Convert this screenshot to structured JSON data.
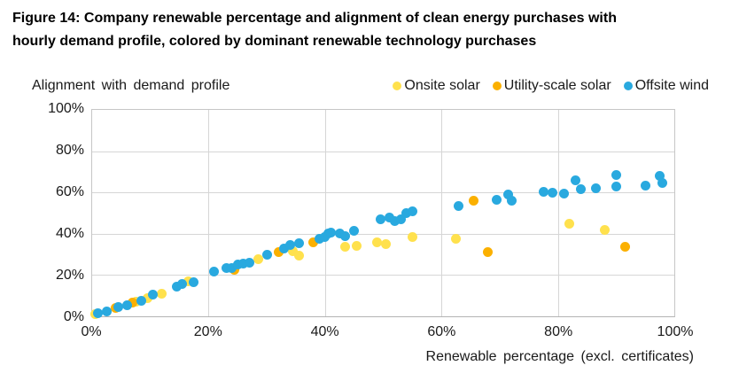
{
  "figure": {
    "title_line1": "Figure 14: Company renewable percentage and alignment of clean energy purchases with",
    "title_line2": "hourly demand profile, colored by dominant renewable technology purchases"
  },
  "chart_data": {
    "type": "scatter",
    "title": "Figure 14: Company renewable percentage and alignment of clean energy purchases with hourly demand profile, colored by dominant renewable technology purchases",
    "y_axis_title": "Alignment with demand profile",
    "x_axis_title": "Renewable percentage (excl. certificates)",
    "xlabel_units": "percent",
    "xlim": [
      0,
      100
    ],
    "ylim": [
      0,
      100
    ],
    "x_ticks": [
      "0%",
      "20%",
      "40%",
      "60%",
      "80%",
      "100%"
    ],
    "y_ticks": [
      "0%",
      "20%",
      "40%",
      "60%",
      "80%",
      "100%"
    ],
    "grid": true,
    "legend_position": "top-right",
    "marker_size_px": 11,
    "series": [
      {
        "name": "Onsite solar",
        "color": "#FFE14D",
        "points": [
          [
            0.5,
            1
          ],
          [
            7.5,
            7
          ],
          [
            9.5,
            9
          ],
          [
            12,
            11
          ],
          [
            16.5,
            17
          ],
          [
            28.5,
            27.5
          ],
          [
            34.5,
            31.5
          ],
          [
            35.5,
            29.5
          ],
          [
            43.5,
            33.5
          ],
          [
            45.5,
            34
          ],
          [
            49,
            36
          ],
          [
            50.5,
            35
          ],
          [
            55,
            38.5
          ],
          [
            62.5,
            37.5
          ],
          [
            82,
            45
          ],
          [
            88,
            42
          ]
        ]
      },
      {
        "name": "Utility-scale solar",
        "color": "#FBB000",
        "points": [
          [
            4,
            4
          ],
          [
            7,
            6.5
          ],
          [
            24.5,
            22.5
          ],
          [
            32,
            31
          ],
          [
            38,
            36
          ],
          [
            65.5,
            56
          ],
          [
            68,
            31
          ],
          [
            91.5,
            33.5
          ]
        ]
      },
      {
        "name": "Offsite wind",
        "color": "#29A9DF",
        "points": [
          [
            1,
            1.5
          ],
          [
            2.5,
            2.5
          ],
          [
            4.5,
            4.5
          ],
          [
            6,
            5.5
          ],
          [
            8.5,
            7.5
          ],
          [
            10.5,
            10.5
          ],
          [
            14.5,
            14.5
          ],
          [
            15.5,
            15.5
          ],
          [
            17.5,
            16.5
          ],
          [
            21,
            21.5
          ],
          [
            23,
            23.5
          ],
          [
            24,
            23.5
          ],
          [
            25,
            25
          ],
          [
            26,
            25.5
          ],
          [
            27,
            26
          ],
          [
            30,
            30
          ],
          [
            33,
            33
          ],
          [
            34,
            34.5
          ],
          [
            35.5,
            35.5
          ],
          [
            39,
            37.5
          ],
          [
            40,
            38.5
          ],
          [
            40.5,
            40
          ],
          [
            41,
            40.5
          ],
          [
            42.5,
            40
          ],
          [
            43.5,
            39
          ],
          [
            45,
            41.5
          ],
          [
            49.5,
            47
          ],
          [
            51,
            48
          ],
          [
            52,
            46
          ],
          [
            53,
            47
          ],
          [
            54,
            50
          ],
          [
            55,
            51
          ],
          [
            63,
            53.5
          ],
          [
            69.5,
            56.5
          ],
          [
            71.5,
            59
          ],
          [
            72,
            56
          ],
          [
            77.5,
            60.5
          ],
          [
            79,
            60
          ],
          [
            81,
            59.5
          ],
          [
            83,
            66
          ],
          [
            84,
            61.5
          ],
          [
            86.5,
            62
          ],
          [
            90,
            68.5
          ],
          [
            90,
            63
          ],
          [
            95,
            63.5
          ],
          [
            97.5,
            68
          ],
          [
            98,
            64.5
          ]
        ]
      }
    ]
  }
}
